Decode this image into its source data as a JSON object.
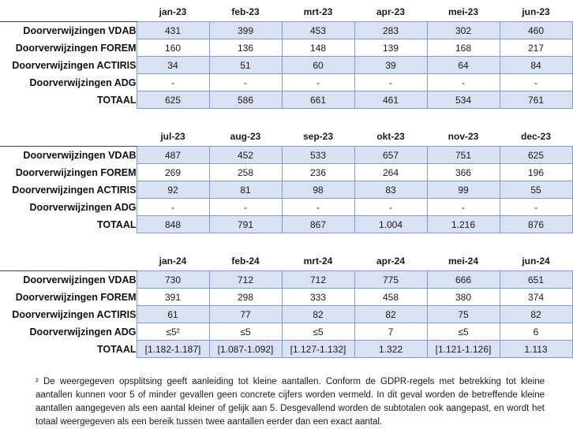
{
  "colors": {
    "shaded_row_fill": "#d9e1f2",
    "table_border_blue": "#7f9bd1",
    "header_rule_dark": "#3f3f3f",
    "text": "#1a1a1a"
  },
  "tables": [
    {
      "months": [
        "jan-23",
        "feb-23",
        "mrt-23",
        "apr-23",
        "mei-23",
        "jun-23"
      ],
      "rows": [
        {
          "label": "Doorverwijzingen VDAB",
          "values": [
            "431",
            "399",
            "453",
            "283",
            "302",
            "460"
          ]
        },
        {
          "label": "Doorverwijzingen FOREM",
          "values": [
            "160",
            "136",
            "148",
            "139",
            "168",
            "217"
          ]
        },
        {
          "label": "Doorverwijzingen ACTIRIS",
          "values": [
            "34",
            "51",
            "60",
            "39",
            "64",
            "84"
          ]
        },
        {
          "label": "Doorverwijzingen ADG",
          "values": [
            "-",
            "-",
            "-",
            "-",
            "-",
            "-"
          ]
        },
        {
          "label": "TOTAAL",
          "values": [
            "625",
            "586",
            "661",
            "461",
            "534",
            "761"
          ]
        }
      ]
    },
    {
      "months": [
        "jul-23",
        "aug-23",
        "sep-23",
        "okt-23",
        "nov-23",
        "dec-23"
      ],
      "rows": [
        {
          "label": "Doorverwijzingen VDAB",
          "values": [
            "487",
            "452",
            "533",
            "657",
            "751",
            "625"
          ]
        },
        {
          "label": "Doorverwijzingen FOREM",
          "values": [
            "269",
            "258",
            "236",
            "264",
            "366",
            "196"
          ]
        },
        {
          "label": "Doorverwijzingen ACTIRIS",
          "values": [
            "92",
            "81",
            "98",
            "83",
            "99",
            "55"
          ]
        },
        {
          "label": "Doorverwijzingen ADG",
          "values": [
            "-",
            "-",
            "-",
            "-",
            "-",
            "-"
          ]
        },
        {
          "label": "TOTAAL",
          "values": [
            "848",
            "791",
            "867",
            "1.004",
            "1.216",
            "876"
          ]
        }
      ]
    },
    {
      "months": [
        "jan-24",
        "feb-24",
        "mrt-24",
        "apr-24",
        "mei-24",
        "jun-24"
      ],
      "rows": [
        {
          "label": "Doorverwijzingen VDAB",
          "values": [
            "730",
            "712",
            "712",
            "775",
            "666",
            "651"
          ]
        },
        {
          "label": "Doorverwijzingen FOREM",
          "values": [
            "391",
            "298",
            "333",
            "458",
            "380",
            "374"
          ]
        },
        {
          "label": "Doorverwijzingen ACTIRIS",
          "values": [
            "61",
            "77",
            "82",
            "82",
            "75",
            "82"
          ]
        },
        {
          "label": "Doorverwijzingen ADG",
          "values": [
            "≤5²",
            "≤5",
            "≤5",
            "7",
            "≤5",
            "6"
          ]
        },
        {
          "label": "TOTAAL",
          "values": [
            "[1.182-1.187]",
            "[1.087-1.092]",
            "[1.127-1.132]",
            "1.322",
            "[1.121-1.126]",
            "1.113"
          ]
        }
      ]
    }
  ],
  "footnote": "² De weergegeven opsplitsing geeft aanleiding tot kleine aantallen. Conform de GDPR-regels met betrekking tot kleine aantallen kunnen voor 5 of minder gevallen geen concrete cijfers worden vermeld. In dit geval worden de betreffende kleine aantallen aangegeven als een aantal kleiner of gelijk aan 5. Desgevallend worden de subtotalen ook aangepast, en wordt het totaal weergegeven als een bereik tussen twee aantallen eerder dan een exact aantal."
}
